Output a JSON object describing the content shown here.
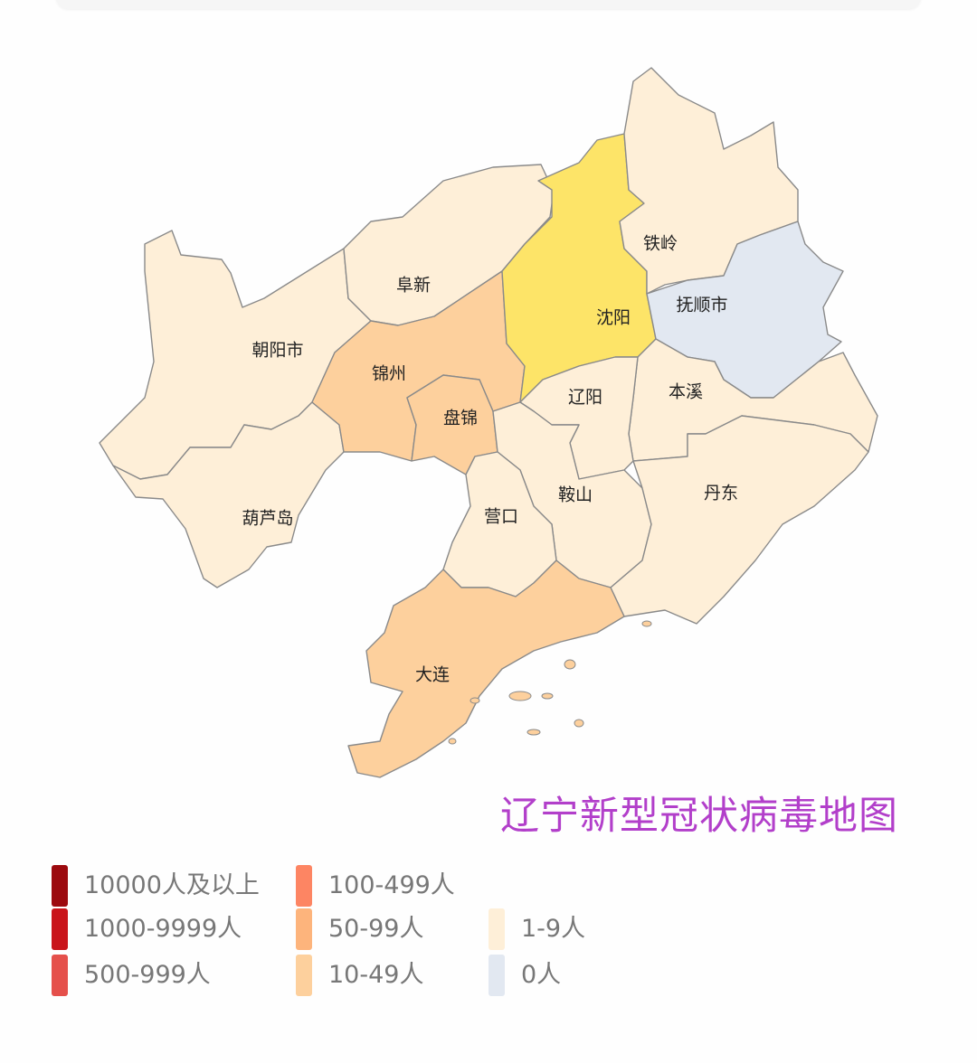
{
  "title": "辽宁新型冠状病毒地图",
  "legend": [
    {
      "label": "10000人及以上",
      "color": "#9c0a0f"
    },
    {
      "label": "1000-9999人",
      "color": "#c9141a"
    },
    {
      "label": "500-999人",
      "color": "#e5504b"
    },
    {
      "label": "100-499人",
      "color": "#fd8563"
    },
    {
      "label": "50-99人",
      "color": "#fdb47c"
    },
    {
      "label": "10-49人",
      "color": "#fdd09d"
    },
    {
      "label": "1-9人",
      "color": "#feefd8"
    },
    {
      "label": "0人",
      "color": "#e2e8f1"
    }
  ],
  "highlight_color": "#fde468",
  "regions": [
    {
      "name": "朝阳市",
      "level": "1-9人"
    },
    {
      "name": "葫芦岛",
      "level": "1-9人"
    },
    {
      "name": "阜新",
      "level": "1-9人"
    },
    {
      "name": "锦州",
      "level": "10-49人"
    },
    {
      "name": "盘锦",
      "level": "10-49人"
    },
    {
      "name": "沈阳",
      "level": "1-9人",
      "highlighted": true
    },
    {
      "name": "铁岭",
      "level": "1-9人"
    },
    {
      "name": "抚顺市",
      "level": "0人"
    },
    {
      "name": "本溪",
      "level": "1-9人"
    },
    {
      "name": "辽阳",
      "level": "1-9人"
    },
    {
      "name": "鞍山",
      "level": "1-9人"
    },
    {
      "name": "丹东",
      "level": "1-9人"
    },
    {
      "name": "营口",
      "level": "1-9人"
    },
    {
      "name": "大连",
      "level": "10-49人"
    }
  ]
}
